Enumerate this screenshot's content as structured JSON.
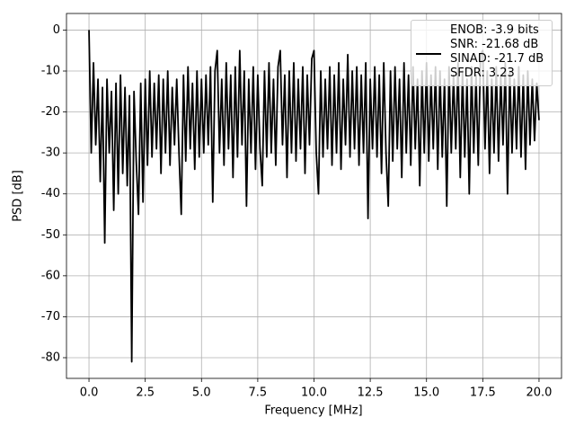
{
  "chart_data": {
    "type": "line",
    "xlabel": "Frequency [MHz]",
    "ylabel": "PSD [dB]",
    "xlim": [
      -1.0,
      21.0
    ],
    "ylim": [
      -85.05,
      4.05
    ],
    "xticks": [
      {
        "value": 0,
        "label": "0.0"
      },
      2.5,
      {
        "value": 5,
        "label": "5.0"
      },
      7.5,
      {
        "value": 10,
        "label": "10.0"
      },
      12.5,
      {
        "value": 15,
        "label": "15.0"
      },
      17.5,
      {
        "value": 20,
        "label": "20.0"
      }
    ],
    "yticks": [
      0,
      -10,
      -20,
      -30,
      -40,
      -50,
      -60,
      -70,
      -80
    ],
    "grid": true,
    "legend": "upper right",
    "x": [
      0,
      0.1,
      0.2,
      0.3,
      0.4,
      0.5,
      0.6,
      0.7,
      0.8,
      0.9,
      1,
      1.1,
      1.2,
      1.3,
      1.4,
      1.5,
      1.6,
      1.7,
      1.8,
      1.9,
      2,
      2.1,
      2.2,
      2.3,
      2.4,
      2.5,
      2.6,
      2.7,
      2.8,
      2.9,
      3,
      3.1,
      3.2,
      3.3,
      3.4,
      3.5,
      3.6,
      3.7,
      3.8,
      3.9,
      4,
      4.1,
      4.2,
      4.3,
      4.4,
      4.5,
      4.6,
      4.7,
      4.8,
      4.9,
      5,
      5.1,
      5.2,
      5.3,
      5.4,
      5.5,
      5.6,
      5.7,
      5.8,
      5.9,
      6,
      6.1,
      6.2,
      6.3,
      6.4,
      6.5,
      6.6,
      6.7,
      6.8,
      6.9,
      7,
      7.1,
      7.2,
      7.3,
      7.4,
      7.5,
      7.6,
      7.7,
      7.8,
      7.9,
      8,
      8.1,
      8.2,
      8.3,
      8.4,
      8.5,
      8.6,
      8.7,
      8.8,
      8.9,
      9,
      9.1,
      9.2,
      9.3,
      9.4,
      9.5,
      9.6,
      9.7,
      9.8,
      9.9,
      10,
      10.1,
      10.2,
      10.3,
      10.4,
      10.5,
      10.6,
      10.7,
      10.8,
      10.9,
      11,
      11.1,
      11.2,
      11.3,
      11.4,
      11.5,
      11.6,
      11.7,
      11.8,
      11.9,
      12,
      12.1,
      12.2,
      12.3,
      12.4,
      12.5,
      12.6,
      12.7,
      12.8,
      12.9,
      13,
      13.1,
      13.2,
      13.3,
      13.4,
      13.5,
      13.6,
      13.7,
      13.8,
      13.9,
      14,
      14.1,
      14.2,
      14.3,
      14.4,
      14.5,
      14.6,
      14.7,
      14.8,
      14.9,
      15,
      15.1,
      15.2,
      15.3,
      15.4,
      15.5,
      15.6,
      15.7,
      15.8,
      15.9,
      16,
      16.1,
      16.2,
      16.3,
      16.4,
      16.5,
      16.6,
      16.7,
      16.8,
      16.9,
      17,
      17.1,
      17.2,
      17.3,
      17.4,
      17.5,
      17.6,
      17.7,
      17.8,
      17.9,
      18,
      18.1,
      18.2,
      18.3,
      18.4,
      18.5,
      18.6,
      18.7,
      18.8,
      18.9,
      19,
      19.1,
      19.2,
      19.3,
      19.4,
      19.5,
      19.6,
      19.7,
      19.8,
      19.9,
      20
    ],
    "series": [
      {
        "name": "ENOB: -3.9 bits\nSNR: -21.68 dB\nSINAD: -21.7 dB\nSFDR: 3.23",
        "color": "#000000",
        "values": [
          0,
          -30,
          -8,
          -28,
          -12,
          -37,
          -14,
          -52,
          -12,
          -30,
          -15,
          -44,
          -13,
          -40,
          -11,
          -35,
          -14,
          -38,
          -16,
          -81,
          -15,
          -32,
          -45,
          -13,
          -42,
          -12,
          -33,
          -10,
          -31,
          -13,
          -29,
          -11,
          -35,
          -12,
          -30,
          -10,
          -33,
          -14,
          -28,
          -12,
          -30,
          -45,
          -11,
          -32,
          -9,
          -29,
          -13,
          -34,
          -10,
          -31,
          -12,
          -30,
          -11,
          -28,
          -9,
          -42,
          -10,
          -5,
          -30,
          -12,
          -33,
          -8,
          -29,
          -11,
          -36,
          -9,
          -31,
          -5,
          -28,
          -10,
          -43,
          -12,
          -30,
          -9,
          -34,
          -11,
          -29,
          -38,
          -10,
          -31,
          -8,
          -30,
          -12,
          -33,
          -9,
          -5,
          -28,
          -11,
          -36,
          -10,
          -30,
          -8,
          -32,
          -12,
          -29,
          -9,
          -35,
          -11,
          -28,
          -7,
          -5,
          -30,
          -40,
          -10,
          -31,
          -12,
          -29,
          -9,
          -33,
          -11,
          -30,
          -8,
          -34,
          -12,
          -28,
          -6,
          -31,
          -10,
          -29,
          -9,
          -33,
          -11,
          -30,
          -8,
          -46,
          -12,
          -29,
          -9,
          -31,
          -11,
          -35,
          -8,
          -30,
          -43,
          -10,
          -32,
          -9,
          -29,
          -12,
          -36,
          -8,
          -30,
          -11,
          -33,
          -9,
          -29,
          -12,
          -38,
          -10,
          -30,
          -8,
          -32,
          -11,
          -29,
          -9,
          -34,
          -10,
          -31,
          -12,
          -43,
          -9,
          -30,
          -11,
          -29,
          -8,
          -36,
          -10,
          -31,
          -12,
          -40,
          -9,
          -30,
          -11,
          -33,
          -6,
          -5,
          -29,
          -10,
          -35,
          -12,
          -30,
          -9,
          -32,
          -11,
          -28,
          -8,
          -40,
          -10,
          -30,
          -12,
          -29,
          -9,
          -31,
          -11,
          -34,
          -10,
          -28,
          -12,
          -27,
          -13,
          -22
        ]
      }
    ]
  }
}
